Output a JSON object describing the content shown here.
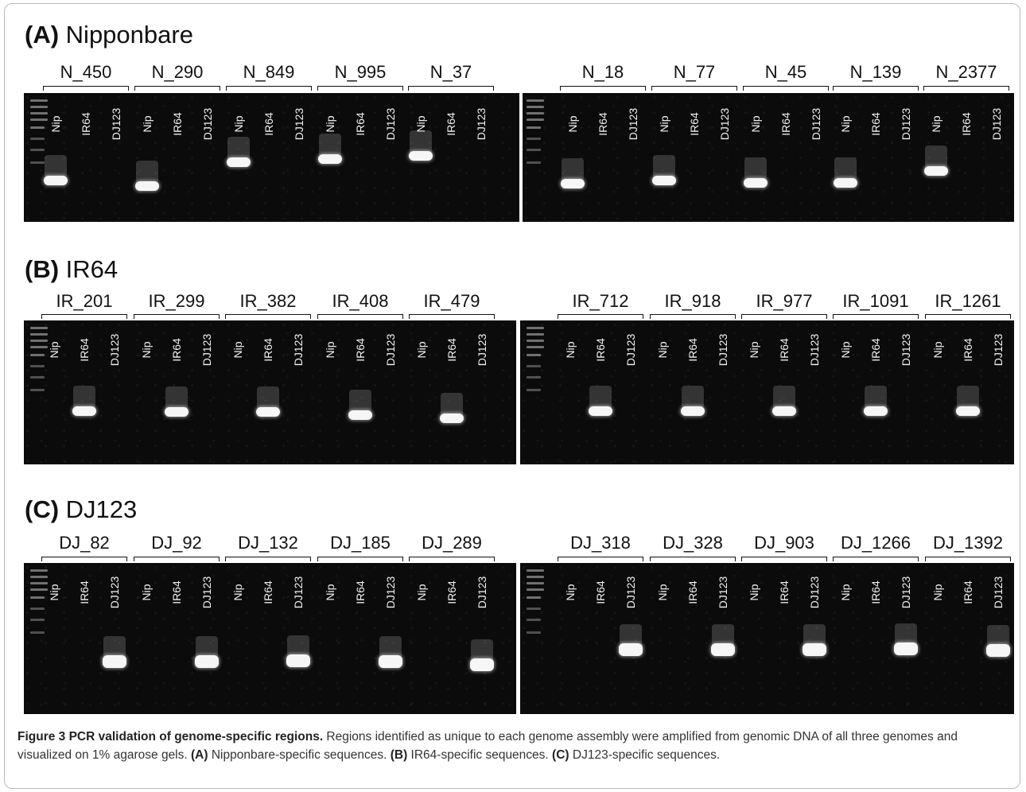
{
  "panels": [
    {
      "tag": "(A)",
      "name": "Nipponbare",
      "lanes": [
        "Nip",
        "IR64",
        "DJ123"
      ],
      "groups": [
        "N_450",
        "N_290",
        "N_849",
        "N_995",
        "N_37",
        "N_18",
        "N_77",
        "N_45",
        "N_139",
        "N_2377"
      ],
      "positive_lane": 0
    },
    {
      "tag": "(B)",
      "name": "IR64",
      "lanes": [
        "Nip",
        "IR64",
        "DJ123"
      ],
      "groups": [
        "IR_201",
        "IR_299",
        "IR_382",
        "IR_408",
        "IR_479",
        "IR_712",
        "IR_918",
        "IR_977",
        "IR_1091",
        "IR_1261"
      ],
      "positive_lane": 1
    },
    {
      "tag": "(C)",
      "name": "DJ123",
      "lanes": [
        "Nip",
        "IR64",
        "DJ123"
      ],
      "groups": [
        "DJ_82",
        "DJ_92",
        "DJ_132",
        "DJ_185",
        "DJ_289",
        "DJ_318",
        "DJ_328",
        "DJ_903",
        "DJ_1266",
        "DJ_1392"
      ],
      "positive_lane": 2
    }
  ],
  "caption": {
    "title": "Figure 3 PCR validation of genome-specific regions.",
    "text1": " Regions identified as unique to each genome assembly were amplified from genomic DNA of all three genomes and visualized on 1% agarose gels. ",
    "tagA": "(A)",
    "textA": " Nipponbare-specific sequences. ",
    "tagB": "(B)",
    "textB": " IR64-specific sequences. ",
    "tagC": "(C)",
    "textC": " DJ123-specific sequences."
  }
}
